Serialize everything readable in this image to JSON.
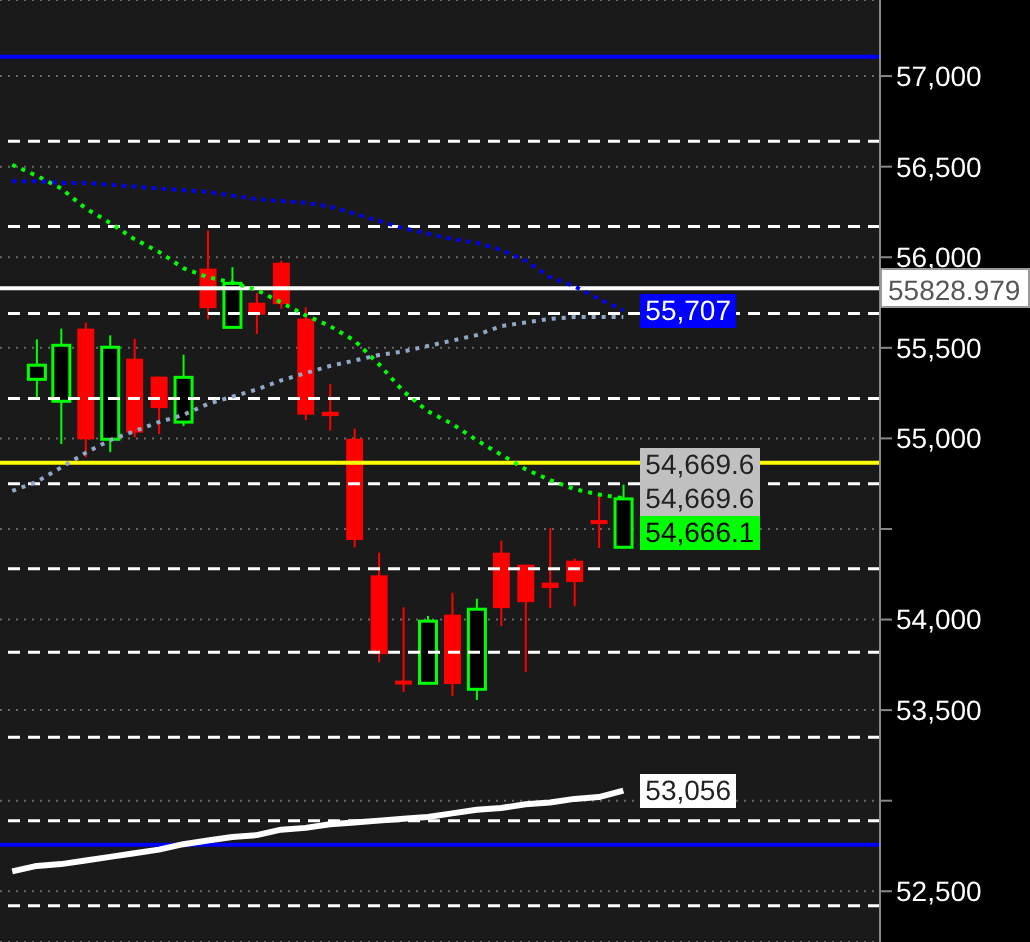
{
  "chart_data": {
    "type": "candlestick",
    "categories": [
      null,
      null,
      null,
      null,
      null,
      null,
      null,
      null,
      null,
      null,
      null,
      null,
      null,
      null,
      null,
      null,
      null,
      null,
      null,
      null,
      null,
      null,
      null,
      null,
      null,
      null,
      null,
      null,
      null,
      null,
      null,
      null,
      null,
      null,
      null,
      null
    ],
    "ohlc": [
      null,
      [
        55326,
        55547,
        55227,
        55404
      ],
      [
        55205,
        55606,
        54969,
        55514
      ],
      [
        55606,
        55639,
        54896,
        54995
      ],
      [
        54995,
        55569,
        54924,
        55503
      ],
      [
        55440,
        55550,
        55006,
        55032
      ],
      [
        55341,
        55341,
        55024,
        55167
      ],
      [
        55090,
        55462,
        55068,
        55337
      ],
      [
        55937,
        56147,
        55658,
        55719
      ],
      [
        55613,
        55945,
        55613,
        55856
      ],
      [
        55749,
        55804,
        55576,
        55683
      ],
      [
        55970,
        55981,
        55716,
        55741
      ],
      [
        55661,
        55724,
        55101,
        55131
      ],
      [
        55147,
        55300,
        55043,
        55123
      ],
      [
        54998,
        55054,
        54399,
        54439
      ],
      [
        54244,
        54369,
        53765,
        53809
      ],
      [
        53663,
        54068,
        53600,
        53641
      ],
      [
        53648,
        54019,
        53648,
        53991
      ],
      [
        54027,
        54148,
        53578,
        53644
      ],
      [
        53615,
        54115,
        53556,
        54057
      ],
      [
        54369,
        54435,
        53964,
        54063
      ],
      [
        54303,
        54303,
        53710,
        54096
      ],
      [
        54204,
        54505,
        54063,
        54174
      ],
      [
        54325,
        54336,
        54074,
        54207
      ],
      [
        54549,
        54682,
        54395,
        54527
      ],
      [
        54399,
        54745,
        54399,
        54666.1
      ],
      null,
      null,
      null,
      null,
      null,
      null,
      null,
      null,
      null,
      null
    ],
    "value_labels": [
      null,
      null,
      null,
      null,
      null,
      null,
      null,
      null,
      null,
      null,
      null,
      null,
      null,
      null,
      null,
      null,
      null,
      null,
      null,
      null,
      null,
      null,
      null,
      null,
      null,
      "54,666.1",
      null,
      null,
      null,
      null,
      null,
      null,
      null,
      null,
      null,
      null
    ],
    "series": [
      {
        "type": "line",
        "color": "#00ff00",
        "line_style": "dotted",
        "values": [
          56510,
          56450,
          56380,
          56270,
          56190,
          56100,
          56030,
          55940,
          55890,
          55860,
          55820,
          55750,
          55680,
          55620,
          55540,
          55410,
          55260,
          55150,
          55080,
          54990,
          54910,
          54830,
          54770,
          54720,
          54690,
          54669.6,
          null,
          null,
          null,
          null,
          null,
          null,
          null,
          null,
          null,
          null
        ],
        "value_labels": [
          null,
          null,
          null,
          null,
          null,
          null,
          null,
          null,
          null,
          null,
          null,
          null,
          null,
          null,
          null,
          null,
          null,
          null,
          null,
          null,
          null,
          null,
          null,
          null,
          null,
          "54,669.6",
          null,
          null,
          null,
          null,
          null,
          null,
          null,
          null,
          null,
          null
        ]
      },
      {
        "type": "line",
        "color": "#0000ff",
        "line_style": "dotted",
        "values": [
          56420,
          56420,
          56410,
          56410,
          56400,
          56390,
          56380,
          56370,
          56360,
          56340,
          56320,
          56310,
          56300,
          56280,
          56240,
          56200,
          56160,
          56130,
          56100,
          56080,
          56040,
          55980,
          55890,
          55840,
          55770,
          55707,
          null,
          null,
          null,
          null,
          null,
          null,
          null,
          null,
          null,
          null
        ],
        "value_labels": [
          null,
          null,
          null,
          null,
          null,
          null,
          null,
          null,
          null,
          null,
          null,
          null,
          null,
          null,
          null,
          null,
          null,
          null,
          null,
          null,
          null,
          null,
          null,
          null,
          null,
          "55,707",
          null,
          null,
          null,
          null,
          null,
          null,
          null,
          null,
          null,
          null
        ]
      },
      {
        "type": "line",
        "color": "#8fa8c8",
        "line_style": "dotted",
        "values": [
          54710,
          54760,
          54840,
          54920,
          54990,
          55040,
          55090,
          55130,
          55190,
          55230,
          55270,
          55320,
          55360,
          55400,
          55430,
          55460,
          55480,
          55510,
          55540,
          55570,
          55620,
          55640,
          55660,
          55670,
          55670,
          55670,
          null,
          null,
          null,
          null,
          null,
          null,
          null,
          null,
          null,
          null
        ]
      },
      {
        "type": "line",
        "color": "#ffffff",
        "line_style": "solid",
        "values": [
          52610,
          52640,
          52650,
          52670,
          52690,
          52710,
          52730,
          52760,
          52780,
          52800,
          52810,
          52840,
          52850,
          52870,
          52880,
          52890,
          52900,
          52910,
          52930,
          52950,
          52960,
          52980,
          52990,
          53010,
          53020,
          53056,
          null,
          null,
          null,
          null,
          null,
          null,
          null,
          null,
          null,
          null
        ],
        "value_labels": [
          null,
          null,
          null,
          null,
          null,
          null,
          null,
          null,
          null,
          null,
          null,
          null,
          null,
          null,
          null,
          null,
          null,
          null,
          null,
          null,
          null,
          null,
          null,
          null,
          null,
          "53,056",
          null,
          null,
          null,
          null,
          null,
          null,
          null,
          null,
          null,
          null
        ]
      }
    ],
    "ylim": [
      52220,
      57420
    ],
    "yticks": [
      {
        "value": 52500,
        "label": "52,500"
      },
      {
        "value": 53000,
        "label": null
      },
      {
        "value": 53500,
        "label": "53,500"
      },
      {
        "value": 54000,
        "label": "54,000"
      },
      {
        "value": 54500,
        "label": null
      },
      {
        "value": 55000,
        "label": "55,000"
      },
      {
        "value": 55500,
        "label": "55,500"
      },
      {
        "value": 56000,
        "label": "56,000"
      },
      {
        "value": 56500,
        "label": "56,500"
      },
      {
        "value": 57000,
        "label": "57,000"
      }
    ],
    "tick_labels": "y",
    "grid": "y",
    "ref_lines": [
      {
        "axis": "y",
        "value": 57107,
        "color": "#0000ff",
        "line_style": "solid"
      },
      {
        "axis": "y",
        "value": 52757,
        "color": "#0000ff",
        "line_style": "solid"
      },
      {
        "axis": "y",
        "value": 54866,
        "color": "#ffff00",
        "line_style": "solid"
      },
      {
        "axis": "y",
        "value": 56640,
        "color": "#ffffff",
        "line_style": "dashed"
      },
      {
        "axis": "y",
        "value": 56170,
        "color": "#ffffff",
        "line_style": "dashed"
      },
      {
        "axis": "y",
        "value": 55690,
        "color": "#ffffff",
        "line_style": "dashed"
      },
      {
        "axis": "y",
        "value": 55220,
        "color": "#ffffff",
        "line_style": "dashed"
      },
      {
        "axis": "y",
        "value": 54750,
        "color": "#ffffff",
        "line_style": "dashed"
      },
      {
        "axis": "y",
        "value": 54280,
        "color": "#ffffff",
        "line_style": "dashed"
      },
      {
        "axis": "y",
        "value": 53820,
        "color": "#ffffff",
        "line_style": "dashed"
      },
      {
        "axis": "y",
        "value": 53350,
        "color": "#ffffff",
        "line_style": "dashed"
      },
      {
        "axis": "y",
        "value": 52890,
        "color": "#ffffff",
        "line_style": "dashed"
      },
      {
        "axis": "y",
        "value": 52420,
        "color": "#ffffff",
        "line_style": "dashed"
      },
      {
        "axis": "y",
        "value": 55828.979,
        "label": "55828.979",
        "color": "#ffffff",
        "line_style": "solid"
      }
    ],
    "annotations": [
      "54,669.6"
    ]
  }
}
